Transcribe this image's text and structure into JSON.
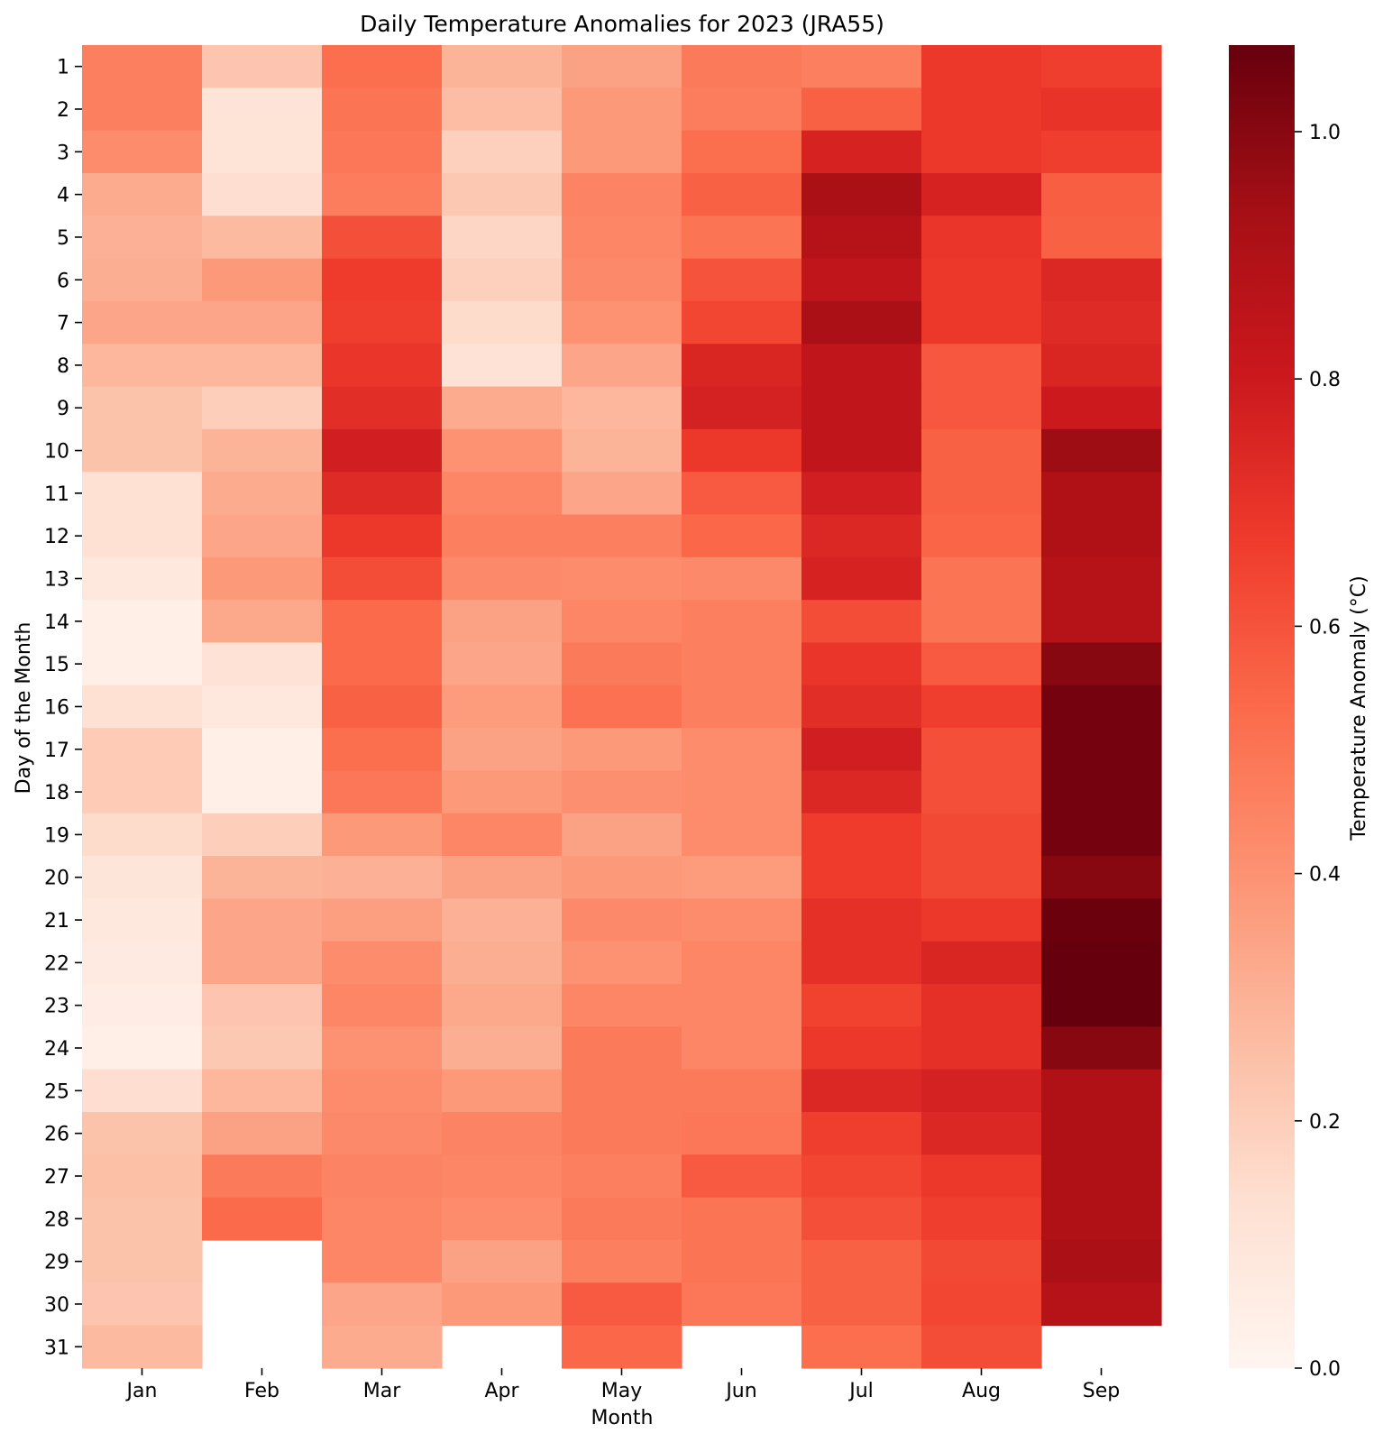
{
  "chart_data": {
    "type": "heatmap",
    "title": "Daily Temperature Anomalies for 2023 (JRA55)",
    "xlabel": "Month",
    "ylabel": "Day of the Month",
    "colorbar_label": "Temperature Anomaly (°C)",
    "colormap": "Reds",
    "value_range": [
      0.0,
      1.07
    ],
    "colorbar_ticks": [
      "0.0",
      "0.2",
      "0.4",
      "0.6",
      "0.8",
      "1.0"
    ],
    "colorbar_tick_values": [
      0.0,
      0.2,
      0.4,
      0.6,
      0.8,
      1.0
    ],
    "months": [
      "Jan",
      "Feb",
      "Mar",
      "Apr",
      "May",
      "Jun",
      "Jul",
      "Aug",
      "Sep"
    ],
    "days": [
      "1",
      "2",
      "3",
      "4",
      "5",
      "6",
      "7",
      "8",
      "9",
      "10",
      "11",
      "12",
      "13",
      "14",
      "15",
      "16",
      "17",
      "18",
      "19",
      "20",
      "21",
      "22",
      "23",
      "24",
      "25",
      "26",
      "27",
      "28",
      "29",
      "30",
      "31"
    ],
    "values": [
      [
        0.46,
        0.46,
        0.42,
        0.32,
        0.3,
        0.31,
        0.34,
        0.28,
        0.24,
        0.24,
        0.13,
        0.13,
        0.08,
        0.04,
        0.04,
        0.13,
        0.21,
        0.21,
        0.15,
        0.1,
        0.08,
        0.07,
        0.05,
        0.04,
        0.14,
        0.24,
        0.25,
        0.24,
        0.24,
        0.23,
        0.27
      ],
      [
        0.23,
        0.11,
        0.11,
        0.14,
        0.27,
        0.38,
        0.34,
        0.28,
        0.2,
        0.29,
        0.32,
        0.34,
        0.38,
        0.33,
        0.12,
        0.09,
        0.04,
        0.04,
        0.2,
        0.29,
        0.34,
        0.34,
        0.23,
        0.22,
        0.28,
        0.35,
        0.48,
        0.53,
        null,
        null,
        null
      ],
      [
        0.52,
        0.5,
        0.49,
        0.47,
        0.61,
        0.67,
        0.66,
        0.69,
        0.72,
        0.78,
        0.73,
        0.68,
        0.62,
        0.53,
        0.53,
        0.56,
        0.52,
        0.49,
        0.38,
        0.3,
        0.36,
        0.42,
        0.44,
        0.4,
        0.42,
        0.43,
        0.45,
        0.44,
        0.44,
        0.34,
        0.32
      ],
      [
        0.29,
        0.26,
        0.19,
        0.22,
        0.17,
        0.19,
        0.15,
        0.12,
        0.32,
        0.4,
        0.44,
        0.46,
        0.43,
        0.35,
        0.34,
        0.37,
        0.35,
        0.38,
        0.44,
        0.35,
        0.3,
        0.31,
        0.33,
        0.31,
        0.38,
        0.45,
        0.44,
        0.42,
        0.35,
        0.38,
        null
      ],
      [
        0.35,
        0.38,
        0.38,
        0.45,
        0.44,
        0.43,
        0.4,
        0.34,
        0.28,
        0.29,
        0.34,
        0.46,
        0.42,
        0.44,
        0.48,
        0.51,
        0.38,
        0.41,
        0.35,
        0.38,
        0.43,
        0.4,
        0.44,
        0.48,
        0.48,
        0.48,
        0.46,
        0.48,
        0.46,
        0.58,
        0.54
      ],
      [
        0.48,
        0.47,
        0.52,
        0.56,
        0.5,
        0.6,
        0.64,
        0.75,
        0.77,
        0.68,
        0.58,
        0.54,
        0.43,
        0.46,
        0.46,
        0.46,
        0.42,
        0.42,
        0.42,
        0.37,
        0.42,
        0.44,
        0.44,
        0.44,
        0.48,
        0.49,
        0.58,
        0.5,
        0.5,
        0.49,
        null
      ],
      [
        0.46,
        0.56,
        0.76,
        0.92,
        0.88,
        0.84,
        0.92,
        0.84,
        0.84,
        0.84,
        0.78,
        0.74,
        0.76,
        0.62,
        0.69,
        0.72,
        0.78,
        0.74,
        0.67,
        0.67,
        0.71,
        0.71,
        0.65,
        0.68,
        0.74,
        0.66,
        0.64,
        0.61,
        0.56,
        0.56,
        0.52
      ],
      [
        0.68,
        0.68,
        0.68,
        0.76,
        0.69,
        0.68,
        0.68,
        0.59,
        0.59,
        0.56,
        0.56,
        0.55,
        0.5,
        0.5,
        0.58,
        0.66,
        0.61,
        0.61,
        0.63,
        0.63,
        0.68,
        0.75,
        0.71,
        0.71,
        0.77,
        0.74,
        0.68,
        0.66,
        0.63,
        0.64,
        0.62
      ],
      [
        0.66,
        0.7,
        0.66,
        0.57,
        0.56,
        0.74,
        0.73,
        0.75,
        0.8,
        0.95,
        0.9,
        0.9,
        0.88,
        0.88,
        1.0,
        1.04,
        1.04,
        1.04,
        1.04,
        1.0,
        1.06,
        1.07,
        1.07,
        1.0,
        0.9,
        0.9,
        0.9,
        0.9,
        0.92,
        0.88,
        null
      ]
    ]
  }
}
